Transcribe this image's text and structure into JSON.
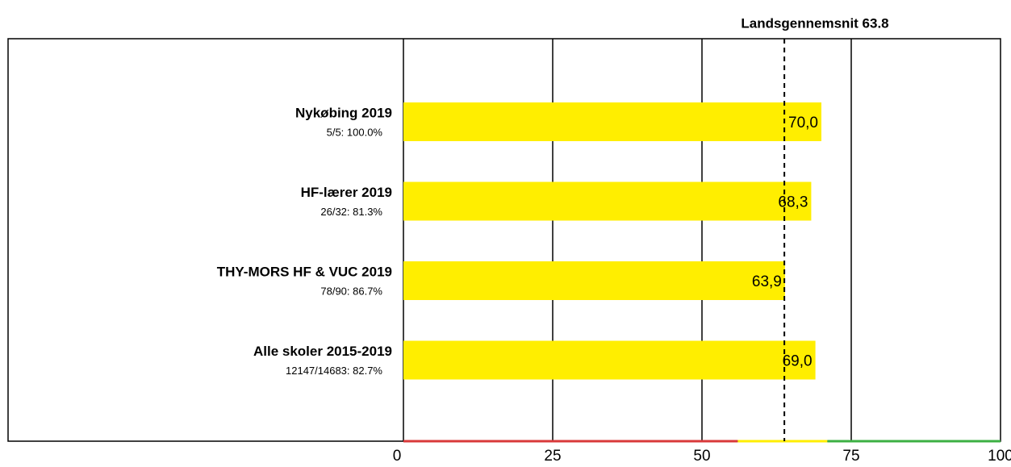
{
  "chart_data": {
    "type": "bar",
    "orientation": "horizontal",
    "categories": [
      "Nykøbing 2019",
      "HF-lærer 2019",
      "THY-MORS HF & VUC 2019",
      "Alle skoler 2015-2019"
    ],
    "sublabels": [
      "5/5: 100.0%",
      "26/32: 81.3%",
      "78/90: 86.7%",
      "12147/14683: 82.7%"
    ],
    "values": [
      70.0,
      68.3,
      63.9,
      69.0
    ],
    "value_labels": [
      "70,0",
      "68,3",
      "63,9",
      "69,0"
    ],
    "color": "#ffee00",
    "xlim": [
      0,
      100
    ],
    "xticks": [
      0,
      25,
      50,
      75,
      100
    ],
    "grid": true,
    "average": {
      "value": 63.8,
      "label": "Landsgennemsnit 63.8"
    },
    "bands": [
      {
        "from": 0,
        "to": 56,
        "color": "#d9393a"
      },
      {
        "from": 56,
        "to": 71,
        "color": "#ffee00"
      },
      {
        "from": 71,
        "to": 100,
        "color": "#3cb043"
      }
    ]
  }
}
